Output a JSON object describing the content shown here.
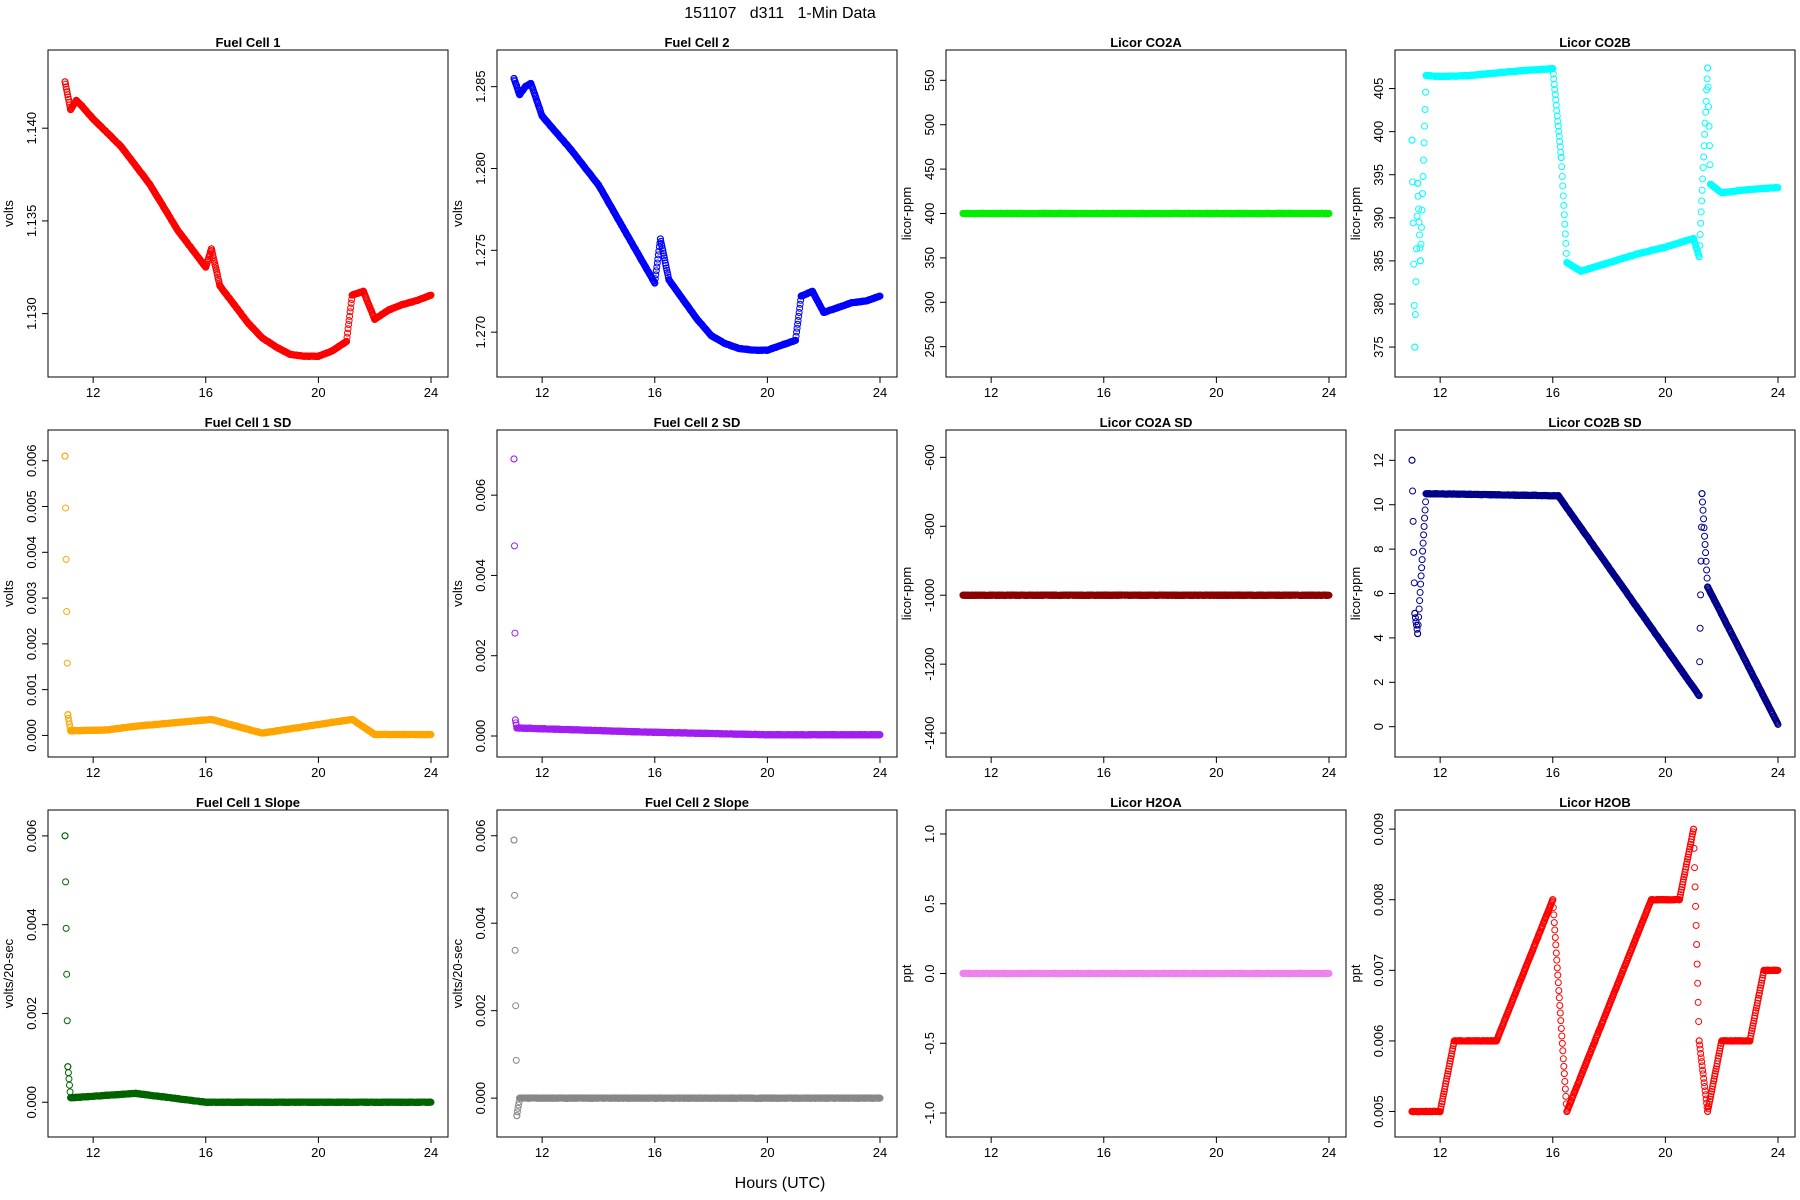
{
  "figure": {
    "title": "151107   d311   1-Min Data",
    "xlabel": "Hours (UTC)"
  },
  "chart_data": [
    {
      "type": "scatter",
      "title": "Fuel Cell 1",
      "ylabel": "volts",
      "xlim": [
        11,
        24
      ],
      "xticks": [
        12,
        16,
        20,
        24
      ],
      "ylim": [
        1.1275,
        1.1433
      ],
      "yticks": [
        1.13,
        1.135,
        1.14
      ],
      "ytick_labels": [
        "1.130",
        "1.135",
        "1.140"
      ],
      "color": "#ff0000",
      "filled": false,
      "series": [
        {
          "x": [
            11.0,
            11.2,
            11.4,
            11.6,
            12.0,
            13.0,
            14.0,
            15.0,
            15.5,
            16.0,
            16.2,
            16.5,
            17.0,
            17.5,
            18.0,
            18.5,
            19.0,
            19.5,
            20.0,
            20.5,
            21.0,
            21.2,
            21.6,
            22.0,
            22.5,
            23.0,
            23.5,
            24.0
          ],
          "y": [
            1.1425,
            1.141,
            1.1415,
            1.1412,
            1.1405,
            1.139,
            1.137,
            1.1345,
            1.1335,
            1.1325,
            1.1335,
            1.1315,
            1.1305,
            1.1295,
            1.1287,
            1.1282,
            1.1278,
            1.1277,
            1.1277,
            1.128,
            1.1285,
            1.131,
            1.1312,
            1.1297,
            1.1302,
            1.1305,
            1.1307,
            1.131
          ]
        }
      ]
    },
    {
      "type": "scatter",
      "title": "Fuel Cell 2",
      "ylabel": "volts",
      "xlim": [
        11,
        24
      ],
      "xticks": [
        12,
        16,
        20,
        24
      ],
      "ylim": [
        1.2683,
        1.2862
      ],
      "yticks": [
        1.27,
        1.275,
        1.28,
        1.285
      ],
      "ytick_labels": [
        "1.270",
        "1.275",
        "1.280",
        "1.285"
      ],
      "color": "#0000ff",
      "filled": false,
      "series": [
        {
          "x": [
            11.0,
            11.2,
            11.4,
            11.6,
            12.0,
            13.0,
            14.0,
            15.0,
            15.5,
            16.0,
            16.2,
            16.5,
            17.0,
            17.5,
            18.0,
            18.5,
            19.0,
            19.5,
            20.0,
            20.5,
            21.0,
            21.2,
            21.6,
            22.0,
            22.5,
            23.0,
            23.5,
            24.0
          ],
          "y": [
            1.2855,
            1.2845,
            1.285,
            1.2852,
            1.2832,
            1.2812,
            1.279,
            1.276,
            1.2745,
            1.273,
            1.2757,
            1.2732,
            1.272,
            1.2708,
            1.2698,
            1.2693,
            1.269,
            1.2689,
            1.2689,
            1.2692,
            1.2695,
            1.2722,
            1.2725,
            1.2712,
            1.2715,
            1.2718,
            1.2719,
            1.2722
          ]
        }
      ]
    },
    {
      "type": "scatter",
      "title": "Licor CO2A",
      "ylabel": "licor-ppm",
      "xlim": [
        11,
        24
      ],
      "xticks": [
        12,
        16,
        20,
        24
      ],
      "ylim": [
        235,
        565
      ],
      "yticks": [
        250,
        300,
        350,
        400,
        450,
        500,
        550
      ],
      "ytick_labels": [
        "250",
        "300",
        "350",
        "400",
        "450",
        "500",
        "550"
      ],
      "color": "#00ee00",
      "filled": true,
      "series": [
        {
          "x": [
            11,
            24
          ],
          "y": [
            400,
            400
          ]
        }
      ]
    },
    {
      "type": "scatter",
      "title": "Licor CO2B",
      "ylabel": "licor-ppm",
      "xlim": [
        11,
        24
      ],
      "xticks": [
        12,
        16,
        20,
        24
      ],
      "ylim": [
        373.5,
        407.5
      ],
      "yticks": [
        375,
        380,
        385,
        390,
        395,
        400,
        405
      ],
      "ytick_labels": [
        "375",
        "380",
        "385",
        "390",
        "395",
        "400",
        "405"
      ],
      "color": "#00ffff",
      "filled": false,
      "series": [
        {
          "x": [
            11.0,
            11.1,
            11.2,
            11.3,
            11.5,
            11.6,
            12.0,
            13.0,
            14.0,
            15.0,
            16.0,
            16.3,
            16.5,
            17.0,
            18.0,
            19.0,
            20.0,
            21.0,
            21.2,
            21.5,
            21.6,
            22.0,
            23.0,
            24.0
          ],
          "y": [
            399,
            375,
            394,
            385,
            406.5,
            406.5,
            406.4,
            406.5,
            406.8,
            407.1,
            407.3,
            397,
            384.8,
            383.8,
            384.8,
            385.8,
            386.6,
            387.6,
            385.5,
            407.4,
            393.9,
            392.9,
            393.3,
            393.5
          ]
        }
      ]
    },
    {
      "type": "scatter",
      "title": "Fuel Cell 1 SD",
      "ylabel": "volts",
      "xlim": [
        11,
        24
      ],
      "xticks": [
        12,
        16,
        20,
        24
      ],
      "ylim": [
        -0.0001,
        0.0063
      ],
      "yticks": [
        0.0,
        0.001,
        0.002,
        0.003,
        0.004,
        0.005,
        0.006
      ],
      "ytick_labels": [
        "0.000",
        "0.001",
        "0.002",
        "0.003",
        "0.004",
        "0.005",
        "0.006"
      ],
      "color": "#ffa500",
      "filled": false,
      "series": [
        {
          "x": [
            11.0,
            11.1,
            11.2,
            12.5,
            13.5,
            16.2,
            18.0,
            21.2,
            22.0,
            24.0
          ],
          "y": [
            0.0061,
            0.00045,
            0.0001,
            0.00012,
            0.0002,
            0.00035,
            5e-05,
            0.00035,
            2e-05,
            2e-05
          ]
        }
      ]
    },
    {
      "type": "scatter",
      "title": "Fuel Cell 2 SD",
      "ylabel": "volts",
      "xlim": [
        11,
        24
      ],
      "xticks": [
        12,
        16,
        20,
        24
      ],
      "ylim": [
        -0.0001,
        0.0072
      ],
      "yticks": [
        0.0,
        0.002,
        0.004,
        0.006
      ],
      "ytick_labels": [
        "0.000",
        "0.002",
        "0.004",
        "0.006"
      ],
      "color": "#a020f0",
      "filled": false,
      "series": [
        {
          "x": [
            11.0,
            11.05,
            11.1,
            15.5,
            20.0,
            24.0
          ],
          "y": [
            0.0069,
            0.0004,
            0.0002,
            0.0001,
            3e-05,
            3e-05
          ]
        }
      ]
    },
    {
      "type": "scatter",
      "title": "Licor CO2A SD",
      "ylabel": "licor-ppm",
      "xlim": [
        11,
        24
      ],
      "xticks": [
        12,
        16,
        20,
        24
      ],
      "ylim": [
        -1420,
        -570
      ],
      "yticks": [
        -1400,
        -1200,
        -1000,
        -800,
        -600
      ],
      "ytick_labels": [
        "-1400",
        "-1200",
        "-1000",
        "-800",
        "-600"
      ],
      "color": "#8b0000",
      "filled": true,
      "series": [
        {
          "x": [
            11,
            24
          ],
          "y": [
            -1000,
            -1000
          ]
        }
      ]
    },
    {
      "type": "scatter",
      "title": "Licor CO2B SD",
      "ylabel": "licor-ppm",
      "xlim": [
        11,
        24
      ],
      "xticks": [
        12,
        16,
        20,
        24
      ],
      "ylim": [
        -0.6,
        12.6
      ],
      "yticks": [
        0,
        2,
        4,
        6,
        8,
        10,
        12
      ],
      "ytick_labels": [
        "0",
        "2",
        "4",
        "6",
        "8",
        "10",
        "12"
      ],
      "color": "#00008b",
      "filled": false,
      "series": [
        {
          "x": [
            11.0,
            11.1,
            11.2,
            11.5,
            16.2,
            21.2,
            21.3,
            21.5,
            24.0
          ],
          "y": [
            12,
            5.1,
            4.2,
            10.5,
            10.4,
            1.4,
            10.5,
            6.3,
            0.1
          ]
        }
      ]
    },
    {
      "type": "scatter",
      "title": "Fuel Cell 1 Slope",
      "ylabel": "volts/20-sec",
      "xlim": [
        11,
        24
      ],
      "xticks": [
        12,
        16,
        20,
        24
      ],
      "ylim": [
        -0.0004,
        0.0062
      ],
      "yticks": [
        0.0,
        0.002,
        0.004,
        0.006
      ],
      "ytick_labels": [
        "0.000",
        "0.002",
        "0.004",
        "0.006"
      ],
      "color": "#006400",
      "filled": false,
      "series": [
        {
          "x": [
            11.0,
            11.1,
            11.2,
            13.5,
            16.0,
            20.0,
            24.0
          ],
          "y": [
            0.006,
            0.0008,
            0.0001,
            0.0002,
            0.0,
            0.0,
            0.0
          ]
        }
      ]
    },
    {
      "type": "scatter",
      "title": "Fuel Cell 2 Slope",
      "ylabel": "volts/20-sec",
      "xlim": [
        11,
        24
      ],
      "xticks": [
        12,
        16,
        20,
        24
      ],
      "ylim": [
        -0.0005,
        0.0062
      ],
      "yticks": [
        0.0,
        0.002,
        0.004,
        0.006
      ],
      "ytick_labels": [
        "0.000",
        "0.002",
        "0.004",
        "0.006"
      ],
      "color": "#888888",
      "filled": false,
      "series": [
        {
          "x": [
            11.0,
            11.1,
            11.2,
            16.0,
            20.0,
            24.0
          ],
          "y": [
            0.0059,
            -0.0004,
            0.0,
            0.0,
            0.0,
            0.0
          ]
        }
      ]
    },
    {
      "type": "scatter",
      "title": "Licor H2OA",
      "ylabel": "ppt",
      "xlim": [
        11,
        24
      ],
      "xticks": [
        12,
        16,
        20,
        24
      ],
      "ylim": [
        -1.05,
        1.05
      ],
      "yticks": [
        -1.0,
        -0.5,
        0.0,
        0.5,
        1.0
      ],
      "ytick_labels": [
        "-1.0",
        "-0.5",
        "0.0",
        "0.5",
        "1.0"
      ],
      "color": "#ee82ee",
      "filled": true,
      "series": [
        {
          "x": [
            11,
            24
          ],
          "y": [
            0.0,
            0.0
          ]
        }
      ]
    },
    {
      "type": "scatter",
      "title": "Licor H2OB",
      "ylabel": "ppt",
      "xlim": [
        11,
        24
      ],
      "xticks": [
        12,
        16,
        20,
        24
      ],
      "ylim": [
        0.00488,
        0.00903
      ],
      "yticks": [
        0.005,
        0.006,
        0.007,
        0.008,
        0.009
      ],
      "ytick_labels": [
        "0.005",
        "0.006",
        "0.007",
        "0.008",
        "0.009"
      ],
      "color": "#ff0000",
      "filled": false,
      "series": [
        {
          "x": [
            11.0,
            12.0,
            12.5,
            14.0,
            15.0,
            16.0,
            16.5,
            17.5,
            18.5,
            19.5,
            20.5,
            21.0,
            21.2,
            21.5,
            22.0,
            23.0,
            23.5,
            24.0
          ],
          "y": [
            0.005,
            0.005,
            0.006,
            0.006,
            0.007,
            0.008,
            0.005,
            0.006,
            0.007,
            0.008,
            0.008,
            0.009,
            0.006,
            0.005,
            0.006,
            0.006,
            0.007,
            0.007
          ]
        }
      ]
    }
  ]
}
